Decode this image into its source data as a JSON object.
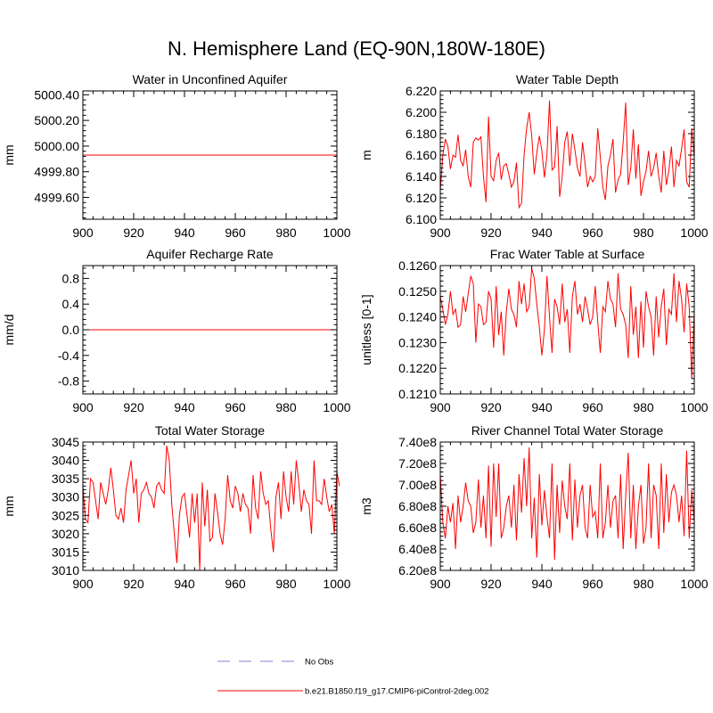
{
  "figure": {
    "title": "N. Hemisphere Land (EQ-90N,180W-180E)",
    "line_color": "#ff0000",
    "obs_color": "#9999dd"
  },
  "legend": {
    "placement": "bottom-center",
    "items": [
      {
        "label": "No Obs",
        "style": "dashed",
        "color": "#9999dd"
      },
      {
        "label": "b.e21.B1850.f19_g17.CMIP6-piControl-2deg.002",
        "style": "solid",
        "color": "#ff0000"
      }
    ]
  },
  "chart_data": [
    {
      "type": "line",
      "title": "Water in Unconfined Aquifer",
      "ylabel": "mm",
      "xlabel": "",
      "xlim": [
        900,
        1000
      ],
      "ylim": [
        4999.43,
        5000.43
      ],
      "x_ticks": [
        900,
        920,
        940,
        960,
        980,
        1000
      ],
      "y_ticks": [
        4999.6,
        4999.8,
        5000.0,
        5000.2,
        5000.4
      ],
      "y_tick_labels": [
        "4999.60",
        "4999.80",
        "5000.00",
        "5000.20",
        "5000.40"
      ],
      "x_start": 900,
      "series": [
        {
          "name": "b.e21.B1850.f19_g17.CMIP6-piControl-2deg.002",
          "values": [
            4999.93,
            4999.93
          ]
        }
      ],
      "series_x": [
        900,
        1000
      ]
    },
    {
      "type": "line",
      "title": "Water Table Depth",
      "ylabel": "m",
      "xlabel": "",
      "xlim": [
        900,
        1000
      ],
      "ylim": [
        6.1,
        6.22
      ],
      "x_ticks": [
        900,
        920,
        940,
        960,
        980,
        1000
      ],
      "y_ticks": [
        6.1,
        6.12,
        6.14,
        6.16,
        6.18,
        6.2,
        6.22
      ],
      "y_tick_labels": [
        "6.100",
        "6.120",
        "6.140",
        "6.160",
        "6.180",
        "6.200",
        "6.220"
      ],
      "x_start": 900,
      "series": [
        {
          "name": "b.e21.B1850.f19_g17.CMIP6-piControl-2deg.002",
          "values": [
            6.126,
            6.16,
            6.175,
            6.168,
            6.147,
            6.16,
            6.158,
            6.179,
            6.155,
            6.15,
            6.165,
            6.14,
            6.13,
            6.172,
            6.176,
            6.174,
            6.177,
            6.14,
            6.116,
            6.196,
            6.14,
            6.136,
            6.155,
            6.162,
            6.137,
            6.15,
            6.152,
            6.142,
            6.13,
            6.135,
            6.153,
            6.111,
            6.115,
            6.16,
            6.185,
            6.2,
            6.178,
            6.142,
            6.162,
            6.178,
            6.164,
            6.139,
            6.16,
            6.211,
            6.146,
            6.149,
            6.187,
            6.121,
            6.14,
            6.172,
            6.182,
            6.15,
            6.18,
            6.165,
            6.148,
            6.14,
            6.172,
            6.152,
            6.13,
            6.14,
            6.135,
            6.14,
            6.185,
            6.158,
            6.13,
            6.118,
            6.15,
            6.16,
            6.175,
            6.125,
            6.137,
            6.142,
            6.172,
            6.209,
            6.132,
            6.148,
            6.184,
            6.138,
            6.17,
            6.122,
            6.135,
            6.145,
            6.164,
            6.14,
            6.148,
            6.162,
            6.14,
            6.125,
            6.164,
            6.132,
            6.146,
            6.168,
            6.13,
            6.155,
            6.15,
            6.166,
            6.184,
            6.135,
            6.13,
            6.185,
            6.158
          ]
        }
      ]
    },
    {
      "type": "line",
      "title": "Aquifer Recharge Rate",
      "ylabel": "mm/d",
      "xlabel": "",
      "xlim": [
        900,
        1000
      ],
      "ylim": [
        -1.0,
        1.0
      ],
      "x_ticks": [
        900,
        920,
        940,
        960,
        980,
        1000
      ],
      "y_ticks": [
        -0.8,
        -0.4,
        0.0,
        0.4,
        0.8
      ],
      "y_tick_labels": [
        "-0.8",
        "-0.4",
        "0.0",
        "0.4",
        "0.8"
      ],
      "x_start": 900,
      "series": [
        {
          "name": "b.e21.B1850.f19_g17.CMIP6-piControl-2deg.002",
          "values": [
            0.0,
            0.0
          ]
        }
      ],
      "series_x": [
        900,
        1000
      ]
    },
    {
      "type": "line",
      "title": "Frac Water Table at Surface",
      "ylabel": "unitless [0-1]",
      "xlabel": "",
      "xlim": [
        900,
        1000
      ],
      "ylim": [
        0.121,
        0.126
      ],
      "x_ticks": [
        900,
        920,
        940,
        960,
        980,
        1000
      ],
      "y_ticks": [
        0.121,
        0.122,
        0.123,
        0.124,
        0.125,
        0.126
      ],
      "y_tick_labels": [
        "0.1210",
        "0.1220",
        "0.1230",
        "0.1240",
        "0.1250",
        "0.1260"
      ],
      "x_start": 900,
      "series": [
        {
          "name": "b.e21.B1850.f19_g17.CMIP6-piControl-2deg.002",
          "values": [
            0.1248,
            0.1243,
            0.1237,
            0.1241,
            0.125,
            0.1241,
            0.1243,
            0.1236,
            0.1237,
            0.1248,
            0.1242,
            0.1249,
            0.1256,
            0.1253,
            0.123,
            0.1245,
            0.1244,
            0.1237,
            0.1238,
            0.125,
            0.1247,
            0.1228,
            0.1252,
            0.1233,
            0.1242,
            0.1225,
            0.1242,
            0.1251,
            0.1243,
            0.1241,
            0.1236,
            0.1254,
            0.1245,
            0.1253,
            0.1242,
            0.1244,
            0.1259,
            0.1255,
            0.1245,
            0.1236,
            0.1225,
            0.1235,
            0.1256,
            0.124,
            0.1226,
            0.1247,
            0.1244,
            0.1237,
            0.1253,
            0.1238,
            0.1243,
            0.1226,
            0.1248,
            0.1254,
            0.1241,
            0.1245,
            0.1238,
            0.1248,
            0.1243,
            0.1237,
            0.124,
            0.1252,
            0.1238,
            0.1226,
            0.1244,
            0.1242,
            0.1254,
            0.1247,
            0.1245,
            0.1236,
            0.1257,
            0.1243,
            0.1241,
            0.1237,
            0.1224,
            0.1252,
            0.1233,
            0.1244,
            0.1224,
            0.1246,
            0.1228,
            0.125,
            0.1244,
            0.124,
            0.1225,
            0.1248,
            0.1232,
            0.1244,
            0.1251,
            0.1229,
            0.1243,
            0.1241,
            0.1257,
            0.1238,
            0.1254,
            0.1247,
            0.1234,
            0.1253,
            0.1244,
            0.1216,
            0.1242
          ]
        }
      ]
    },
    {
      "type": "line",
      "title": "Total Water Storage",
      "ylabel": "mm",
      "xlabel": "",
      "xlim": [
        900,
        1000
      ],
      "ylim": [
        3010,
        3045
      ],
      "x_ticks": [
        900,
        920,
        940,
        960,
        980,
        1000
      ],
      "y_ticks": [
        3010,
        3015,
        3020,
        3025,
        3030,
        3035,
        3040,
        3045
      ],
      "y_tick_labels": [
        "3010",
        "3015",
        "3020",
        "3025",
        "3030",
        "3035",
        "3040",
        "3045"
      ],
      "x_start": 900,
      "series": [
        {
          "name": "b.e21.B1850.f19_g17.CMIP6-piControl-2deg.002",
          "values": [
            3033,
            3024,
            3023,
            3035,
            3034,
            3029,
            3024,
            3034,
            3031,
            3028,
            3032,
            3038,
            3032,
            3025,
            3024,
            3027,
            3023,
            3032,
            3036,
            3040,
            3031,
            3035,
            3023,
            3031,
            3032,
            3034,
            3031,
            3030,
            3027,
            3033,
            3034,
            3032,
            3031,
            3044,
            3040,
            3028,
            3020,
            3012,
            3025,
            3030,
            3031,
            3025,
            3019,
            3031,
            3023,
            3031,
            3010,
            3034,
            3022,
            3032,
            3018,
            3019,
            3031,
            3026,
            3020,
            3017,
            3024,
            3036,
            3029,
            3027,
            3033,
            3031,
            3026,
            3031,
            3028,
            3027,
            3020,
            3036,
            3027,
            3024,
            3037,
            3031,
            3028,
            3029,
            3021,
            3015,
            3030,
            3034,
            3024,
            3037,
            3030,
            3026,
            3037,
            3028,
            3040,
            3034,
            3026,
            3032,
            3029,
            3028,
            3020,
            3040,
            3029,
            3029,
            3028,
            3035,
            3030,
            3026,
            3028,
            3020,
            3037,
            3033
          ]
        }
      ]
    },
    {
      "type": "line",
      "title": "River Channel Total Water Storage",
      "ylabel": "m3",
      "xlabel": "",
      "xlim": [
        900,
        1000
      ],
      "ylim": [
        620000000,
        740000000
      ],
      "x_ticks": [
        900,
        920,
        940,
        960,
        980,
        1000
      ],
      "y_ticks": [
        620000000,
        640000000,
        660000000,
        680000000,
        700000000,
        720000000,
        740000000
      ],
      "y_tick_labels": [
        "6.20e8",
        "6.40e8",
        "6.60e8",
        "6.80e8",
        "7.00e8",
        "7.20e8",
        "7.40e8"
      ],
      "x_start": 900,
      "series": [
        {
          "name": "b.e21.B1850.f19_g17.CMIP6-piControl-2deg.002",
          "values": [
            710000000,
            665000000,
            650000000,
            680000000,
            665000000,
            683000000,
            640000000,
            690000000,
            665000000,
            680000000,
            702000000,
            685000000,
            680000000,
            655000000,
            665000000,
            705000000,
            660000000,
            690000000,
            650000000,
            718000000,
            642000000,
            720000000,
            670000000,
            720000000,
            650000000,
            660000000,
            680000000,
            690000000,
            660000000,
            700000000,
            648000000,
            710000000,
            674000000,
            725000000,
            680000000,
            735000000,
            650000000,
            688000000,
            632000000,
            710000000,
            662000000,
            695000000,
            670000000,
            650000000,
            720000000,
            630000000,
            700000000,
            655000000,
            704000000,
            680000000,
            668000000,
            720000000,
            648000000,
            705000000,
            660000000,
            690000000,
            700000000,
            660000000,
            650000000,
            700000000,
            670000000,
            675000000,
            650000000,
            720000000,
            650000000,
            665000000,
            700000000,
            660000000,
            685000000,
            690000000,
            650000000,
            710000000,
            640000000,
            690000000,
            730000000,
            650000000,
            700000000,
            640000000,
            680000000,
            700000000,
            645000000,
            660000000,
            720000000,
            650000000,
            700000000,
            690000000,
            640000000,
            720000000,
            655000000,
            710000000,
            665000000,
            693000000,
            700000000,
            690000000,
            665000000,
            690000000,
            652000000,
            732000000,
            650000000,
            695000000,
            665000000
          ]
        }
      ]
    }
  ]
}
